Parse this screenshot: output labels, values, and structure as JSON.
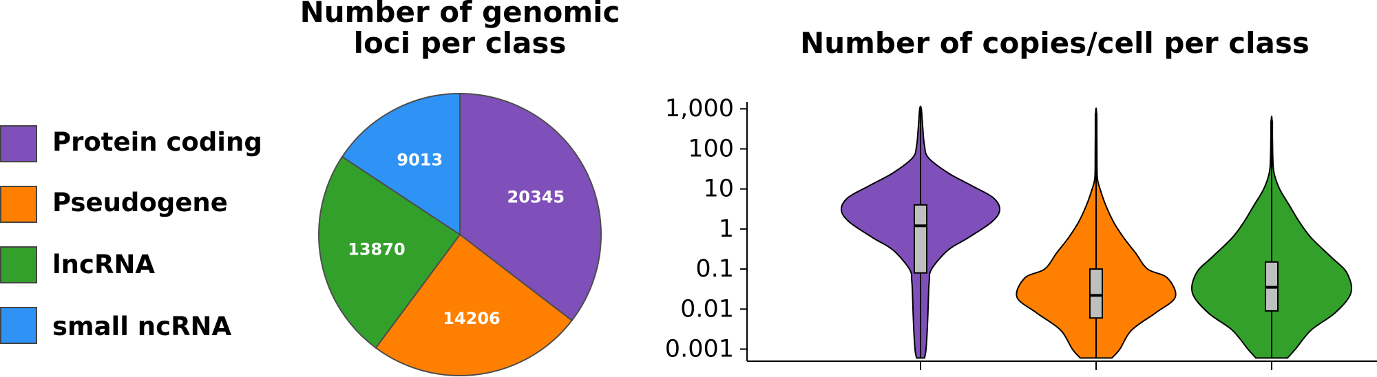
{
  "chart_data": [
    {
      "type": "pie",
      "title_lines": [
        "Number of genomic",
        "loci per class"
      ],
      "categories": [
        "Protein coding",
        "Pseudogene",
        "lncRNA",
        "small ncRNA"
      ],
      "values": [
        20345,
        14206,
        13870,
        9013
      ],
      "labels": [
        "20345",
        "14206",
        "13870",
        "9013"
      ],
      "colors": [
        "#7f4fba",
        "#ff8000",
        "#33a02c",
        "#2e93f5"
      ],
      "legend_position": "left"
    },
    {
      "type": "violin",
      "title": "Number of copies/cell per class",
      "y_scale": "log10",
      "ylim": [
        0.0005,
        1500
      ],
      "y_ticks": [
        0.001,
        0.01,
        0.1,
        1,
        10,
        100,
        1000
      ],
      "y_tick_labels": [
        "0.001",
        "0.01",
        "0.1",
        "1",
        "10",
        "100",
        "1,000"
      ],
      "series": [
        {
          "name": "Protein coding",
          "color": "#7f4fba",
          "median": 1.2,
          "q1": 0.08,
          "q3": 4,
          "min": 0.0006,
          "max": 1000,
          "profile": [
            [
              0.0006,
              0.05
            ],
            [
              0.001,
              0.07
            ],
            [
              0.005,
              0.09
            ],
            [
              0.02,
              0.1
            ],
            [
              0.05,
              0.11
            ],
            [
              0.1,
              0.14
            ],
            [
              0.3,
              0.35
            ],
            [
              0.6,
              0.6
            ],
            [
              1.5,
              0.9
            ],
            [
              3,
              1.0
            ],
            [
              6,
              0.92
            ],
            [
              12,
              0.65
            ],
            [
              25,
              0.35
            ],
            [
              60,
              0.1
            ],
            [
              120,
              0.05
            ],
            [
              300,
              0.03
            ],
            [
              1000,
              0.01
            ]
          ]
        },
        {
          "name": "Pseudogene",
          "color": "#ff8000",
          "median": 0.022,
          "q1": 0.006,
          "q3": 0.1,
          "min": 0.0006,
          "max": 800,
          "profile": [
            [
              0.0006,
              0.2
            ],
            [
              0.001,
              0.3
            ],
            [
              0.003,
              0.45
            ],
            [
              0.008,
              0.75
            ],
            [
              0.02,
              1.0
            ],
            [
              0.06,
              0.9
            ],
            [
              0.1,
              0.65
            ],
            [
              0.25,
              0.5
            ],
            [
              0.6,
              0.35
            ],
            [
              1.5,
              0.22
            ],
            [
              4,
              0.12
            ],
            [
              10,
              0.05
            ],
            [
              20,
              0.015
            ],
            [
              100,
              0.01
            ],
            [
              800,
              0.005
            ]
          ]
        },
        {
          "name": "lncRNA",
          "color": "#33a02c",
          "median": 0.035,
          "q1": 0.009,
          "q3": 0.15,
          "min": 0.0006,
          "max": 500,
          "profile": [
            [
              0.0006,
              0.2
            ],
            [
              0.001,
              0.3
            ],
            [
              0.003,
              0.5
            ],
            [
              0.008,
              0.8
            ],
            [
              0.025,
              1.0
            ],
            [
              0.08,
              0.95
            ],
            [
              0.2,
              0.75
            ],
            [
              0.6,
              0.5
            ],
            [
              1.5,
              0.35
            ],
            [
              4,
              0.22
            ],
            [
              10,
              0.1
            ],
            [
              25,
              0.03
            ],
            [
              60,
              0.015
            ],
            [
              500,
              0.005
            ]
          ]
        }
      ]
    }
  ]
}
